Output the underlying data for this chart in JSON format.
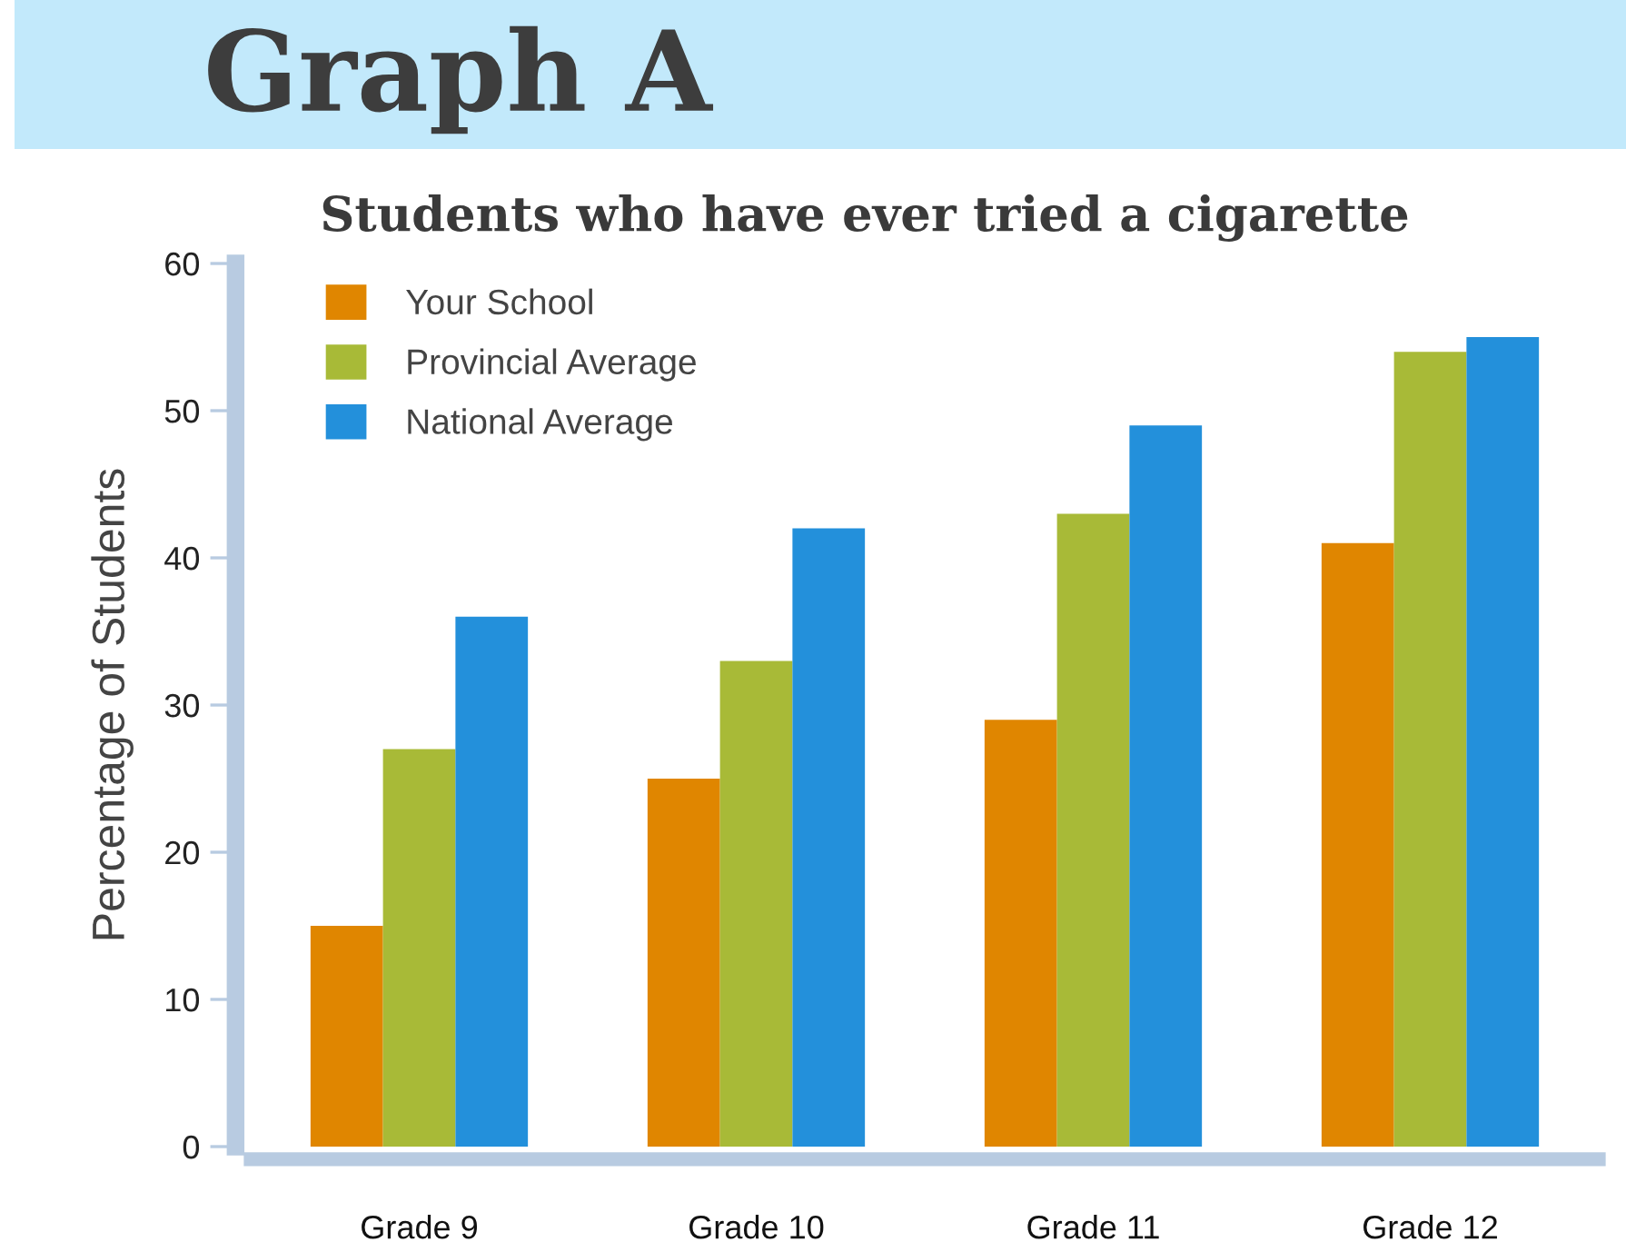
{
  "chart_data": {
    "type": "bar",
    "title": "Graph A",
    "subtitle": "Students who have ever tried a cigarette",
    "ylabel": "Percentage of Students",
    "categories": [
      "Grade 9",
      "Grade 10",
      "Grade 11",
      "Grade 12"
    ],
    "series": [
      {
        "name": "Your School",
        "color": "#e08600",
        "values": [
          15,
          25,
          29,
          41
        ]
      },
      {
        "name": "Provincial Average",
        "color": "#a8ba37",
        "values": [
          27,
          33,
          43,
          54
        ]
      },
      {
        "name": "National Average",
        "color": "#2390db",
        "values": [
          36,
          42,
          49,
          55
        ]
      }
    ],
    "ylim": [
      0,
      60
    ],
    "yticks": [
      0,
      10,
      20,
      30,
      40,
      50,
      60
    ],
    "legend": "top left"
  }
}
